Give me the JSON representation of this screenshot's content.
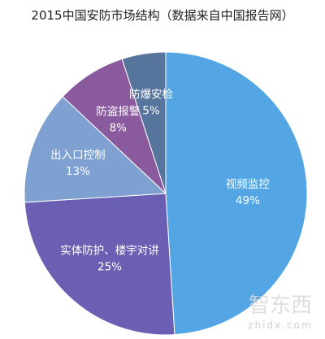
{
  "chart_data": {
    "type": "pie",
    "title": "2015中国安防市场结构（数据来自中国报告网）",
    "start": "12 o'clock, clockwise",
    "slices": [
      {
        "label": "视频监控",
        "value": 49,
        "display": "49%",
        "color": "#53a6e3"
      },
      {
        "label": "实体防护、楼宇对讲",
        "value": 25,
        "display": "25%",
        "color": "#6a5fb2"
      },
      {
        "label": "出入口控制",
        "value": 13,
        "display": "13%",
        "color": "#7fa1d1"
      },
      {
        "label": "防盗报警",
        "value": 8,
        "display": "8%",
        "color": "#8a5a9e"
      },
      {
        "label": "防爆安检",
        "value": 5,
        "display": "5%",
        "color": "#57759c"
      }
    ]
  },
  "watermark": {
    "logo_text": "智东西",
    "url_text": "zhidx.com"
  }
}
